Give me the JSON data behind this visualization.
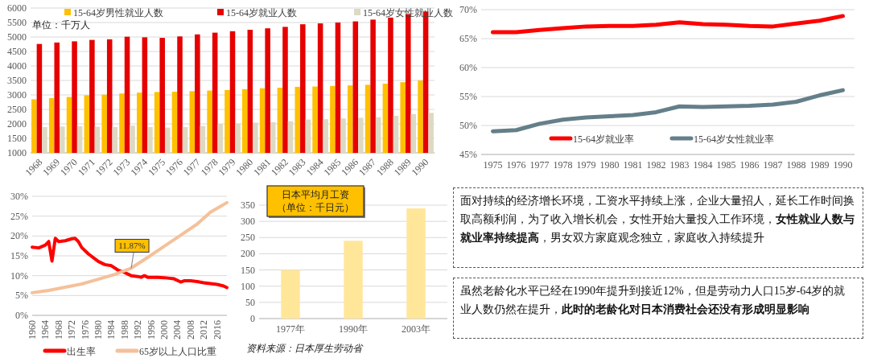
{
  "chart_data": [
    {
      "type": "bar",
      "categories": [
        "1968",
        "1969",
        "1970",
        "1971",
        "1972",
        "1973",
        "1974",
        "1975",
        "1976",
        "1977",
        "1978",
        "1979",
        "1980",
        "1981",
        "1982",
        "1983",
        "1984",
        "1985",
        "1986",
        "1987",
        "1988",
        "1989",
        "1990"
      ],
      "series": [
        {
          "name": "15-64岁男性就业人数",
          "color": "#ffc000",
          "values": [
            2850,
            2890,
            2930,
            2990,
            3010,
            3050,
            3080,
            3100,
            3110,
            3130,
            3150,
            3170,
            3200,
            3230,
            3250,
            3280,
            3290,
            3310,
            3330,
            3350,
            3390,
            3440,
            3500
          ]
        },
        {
          "name": "15-64岁就业人数",
          "color": "#e60000",
          "values": [
            4760,
            4810,
            4850,
            4900,
            4920,
            5010,
            4990,
            4970,
            5020,
            5090,
            5150,
            5200,
            5250,
            5300,
            5350,
            5440,
            5470,
            5500,
            5540,
            5600,
            5670,
            5790,
            5880
          ]
        },
        {
          "name": "15-64岁女性就业人数",
          "color": "#ddd9c3",
          "values": [
            1890,
            1910,
            1920,
            1900,
            1890,
            1940,
            1890,
            1870,
            1890,
            1930,
            2000,
            2010,
            2040,
            2060,
            2090,
            2150,
            2160,
            2190,
            2210,
            2230,
            2280,
            2340,
            2380
          ]
        }
      ],
      "ylim": [
        1000,
        6000
      ],
      "yticks": [
        1000,
        1500,
        2000,
        2500,
        3000,
        3500,
        4000,
        4500,
        5000,
        5500,
        6000
      ],
      "grid": "y",
      "legend": "top",
      "annotations": [
        "单位：千万人"
      ]
    },
    {
      "type": "line",
      "categories": [
        "1975",
        "1976",
        "1977",
        "1978",
        "1979",
        "1980",
        "1981",
        "1982",
        "1983",
        "1984",
        "1985",
        "1986",
        "1987",
        "1988",
        "1989",
        "1990"
      ],
      "series": [
        {
          "name": "15-64岁就业率",
          "color": "#ff0000",
          "values": [
            66.1,
            66.1,
            66.5,
            66.8,
            67.1,
            67.2,
            67.2,
            67.4,
            67.8,
            67.5,
            67.4,
            67.2,
            67.1,
            67.6,
            68.1,
            68.9
          ]
        },
        {
          "name": "15-64岁女性就业率",
          "color": "#647f89",
          "values": [
            49.0,
            49.2,
            50.3,
            51.0,
            51.4,
            51.6,
            51.8,
            52.3,
            53.3,
            53.2,
            53.3,
            53.4,
            53.6,
            54.1,
            55.2,
            56.1
          ]
        }
      ],
      "ylim": [
        45,
        70
      ],
      "yticks": [
        {
          "value": 45,
          "label": "45%"
        },
        {
          "value": 50,
          "label": "50%"
        },
        {
          "value": 55,
          "label": "55%"
        },
        {
          "value": 60,
          "label": "60%"
        },
        {
          "value": 65,
          "label": "65%"
        },
        {
          "value": 70,
          "label": "70%"
        }
      ],
      "grid": "y",
      "legend": "bottom"
    },
    {
      "type": "line",
      "series": [
        {
          "name": "出生率",
          "color": "#ff0000",
          "x": [
            1960,
            1962,
            1964,
            1965,
            1966,
            1967,
            1968,
            1970,
            1972,
            1973,
            1974,
            1975,
            1977,
            1980,
            1982,
            1984,
            1986,
            1988,
            1990,
            1992,
            1993,
            1994,
            1995,
            1998,
            2000,
            2003,
            2005,
            2006,
            2008,
            2010,
            2012,
            2014,
            2016,
            2018,
            2019
          ],
          "values": [
            17.2,
            17.0,
            17.7,
            18.6,
            13.7,
            19.4,
            18.6,
            18.8,
            19.3,
            19.4,
            18.6,
            17.1,
            15.5,
            13.6,
            12.8,
            12.5,
            11.4,
            10.8,
            10.0,
            9.8,
            9.6,
            10.0,
            9.6,
            9.6,
            9.5,
            9.2,
            8.4,
            8.7,
            8.7,
            8.5,
            8.2,
            8.0,
            7.8,
            7.4,
            7.0
          ]
        },
        {
          "name": "65岁以上人口比重",
          "color": "#f4c19a",
          "x": [
            1960,
            1965,
            1970,
            1975,
            1980,
            1985,
            1990,
            1995,
            2000,
            2005,
            2010,
            2014,
            2019
          ],
          "values": [
            5.7,
            6.3,
            7.1,
            7.9,
            9.1,
            10.3,
            11.9,
            14.6,
            17.4,
            20.2,
            23.0,
            26.0,
            28.4
          ]
        }
      ],
      "xlim": [
        1960,
        2019
      ],
      "xticks": [
        1960,
        1964,
        1968,
        1972,
        1976,
        1980,
        1984,
        1988,
        1992,
        1996,
        2000,
        2004,
        2008,
        2012,
        2016
      ],
      "ylim": [
        0,
        30
      ],
      "yticks": [
        {
          "value": 0,
          "label": "0%"
        },
        {
          "value": 5,
          "label": "5%"
        },
        {
          "value": 10,
          "label": "10%"
        },
        {
          "value": 15,
          "label": "15%"
        },
        {
          "value": 20,
          "label": "20%"
        },
        {
          "value": 25,
          "label": "25%"
        },
        {
          "value": 30,
          "label": "30%"
        }
      ],
      "grid": "y",
      "legend": "bottom",
      "annotations": [
        {
          "text": "11.87%",
          "x": 1990,
          "y": 11.87
        }
      ]
    },
    {
      "type": "bar",
      "title": "日本平均月工资",
      "subtitle": "（单位：千日元）",
      "categories": [
        "1977年",
        "1990年",
        "2003年"
      ],
      "values": [
        150,
        240,
        340
      ],
      "color": "#ffe699",
      "ylim": [
        0,
        350
      ],
      "yticks": [
        0,
        50,
        100,
        150,
        200,
        250,
        300,
        350
      ],
      "grid": "y",
      "annotations": [
        "资料来源：日本厚生劳动省"
      ]
    },
    {
      "type": "other",
      "annotations": [
        "面对持续的经济增长环境，工资水平持续上涨，企业大量招人，延长工作时间换取高额利润，为了收入增长机会，女性开始大量投入工作环境，**女性就业人数与就业率持续提高**，男女双方家庭观念独立，家庭收入持续提升",
        "虽然老龄化水平已经在1990年提升到接近12%，但是劳动力人口15岁-64岁的就业人数仍然在提升，**此时的老龄化对日本消费社会还没有形成明显影响**"
      ]
    }
  ]
}
